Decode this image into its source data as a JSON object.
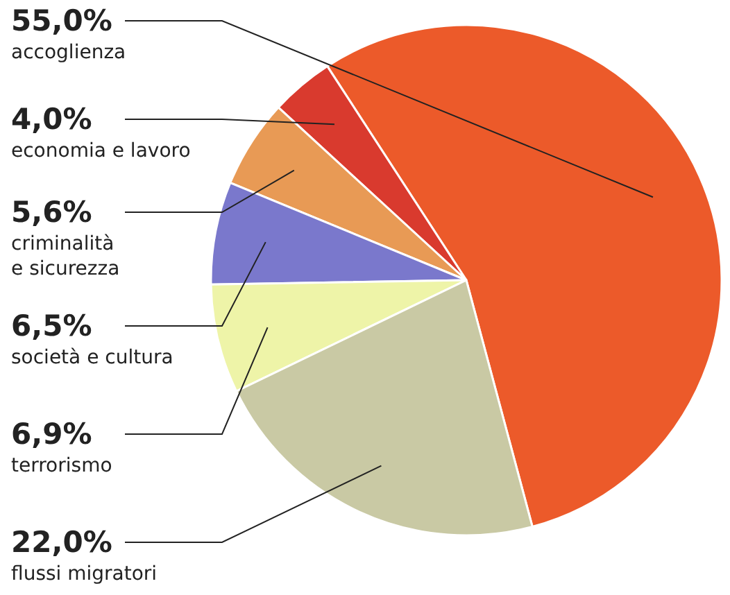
{
  "chart_data": {
    "type": "pie",
    "value_labels": [
      "55,0%",
      "4,0%",
      "5,6%",
      "6,5%",
      "6,9%",
      "22,0%"
    ],
    "categories": [
      "accoglienza",
      "economia e lavoro",
      "criminalità e sicurezza",
      "società e cultura",
      "terrorismo",
      "flussi migratori"
    ],
    "values": [
      55.0,
      4.0,
      5.6,
      6.5,
      6.9,
      22.0
    ],
    "colors": [
      "#ec5a2a",
      "#d93a2e",
      "#e89a55",
      "#7a78cc",
      "#eef4a8",
      "#c9c9a4"
    ]
  }
}
